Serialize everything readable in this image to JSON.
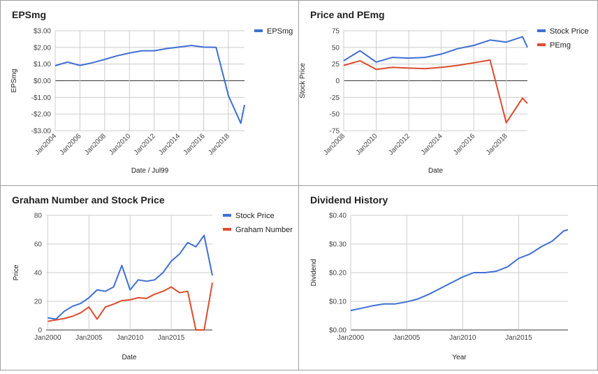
{
  "colors": {
    "blue": "#3f6fd4",
    "red": "#dc4b2d",
    "grid": "#cccccc",
    "zero": "#333333"
  },
  "chart_data": [
    {
      "type": "line",
      "title": "EPSmg",
      "xlabel": "Date / Jul99",
      "ylabel": "EPSmg",
      "xlim": [
        2004,
        2019.3
      ],
      "ylim": [
        -3,
        3
      ],
      "x_ticks": [
        2004,
        2006,
        2008,
        2010,
        2012,
        2014,
        2016,
        2018
      ],
      "x_tick_labels": [
        "Jan2004",
        "Jan2006",
        "Jan2008",
        "Jan2010",
        "Jan2012",
        "Jan2014",
        "Jan2016",
        "Jan2018"
      ],
      "y_ticks": [
        3,
        2,
        1,
        0,
        -1,
        -2,
        -3
      ],
      "y_tick_labels": [
        "$3.00",
        "$2.00",
        "$1.00",
        "$0.00",
        "-$1.00",
        "-$2.00",
        "-$3.00"
      ],
      "legend_position": "right",
      "series": [
        {
          "name": "EPSmg",
          "color": "#3f6fd4",
          "x": [
            2004,
            2005,
            2006,
            2007,
            2008,
            2009,
            2010,
            2011,
            2012,
            2013,
            2014,
            2015,
            2016,
            2017,
            2018,
            2019,
            2019.3
          ],
          "y": [
            0.9,
            1.12,
            0.92,
            1.08,
            1.28,
            1.5,
            1.66,
            1.8,
            1.8,
            1.93,
            2.02,
            2.12,
            2.02,
            2.0,
            -0.9,
            -2.55,
            -1.45
          ]
        }
      ]
    },
    {
      "type": "line",
      "title": "Price and PEmg",
      "xlabel": "Date",
      "ylabel": "Stock Price",
      "xlim": [
        2008,
        2019.3
      ],
      "ylim": [
        -75,
        75
      ],
      "x_ticks": [
        2008,
        2010,
        2012,
        2014,
        2016,
        2018
      ],
      "x_tick_labels": [
        "Jan2008",
        "Jan2010",
        "Jan2012",
        "Jan2014",
        "Jan2016",
        "Jan2018"
      ],
      "y_ticks": [
        75,
        50,
        25,
        0,
        -25,
        -50,
        -75
      ],
      "y_tick_labels": [
        "75",
        "50",
        "25",
        "0",
        "-25",
        "-50",
        "-75"
      ],
      "legend_position": "right",
      "series": [
        {
          "name": "Stock Price",
          "color": "#3f6fd4",
          "x": [
            2008,
            2009,
            2010,
            2011,
            2012,
            2013,
            2014,
            2015,
            2016,
            2017,
            2018,
            2019,
            2019.3
          ],
          "y": [
            30,
            45,
            28,
            35,
            34,
            35,
            40,
            48,
            53,
            61,
            58,
            66,
            50
          ]
        },
        {
          "name": "PEmg",
          "color": "#dc4b2d",
          "x": [
            2008,
            2009,
            2010,
            2011,
            2012,
            2013,
            2014,
            2015,
            2016,
            2017,
            2018,
            2019,
            2019.3
          ],
          "y": [
            23,
            30,
            17,
            20,
            19,
            18,
            20,
            23,
            27,
            31,
            -63,
            -26,
            -34
          ]
        }
      ]
    },
    {
      "type": "line",
      "title": "Graham Number and Stock Price",
      "xlabel": "Date",
      "ylabel": "Price",
      "xlim": [
        1999.8,
        2020
      ],
      "ylim": [
        0,
        80
      ],
      "x_ticks": [
        2000,
        2005,
        2010,
        2015
      ],
      "x_tick_labels": [
        "Jan2000",
        "Jan2005",
        "Jan2010",
        "Jan2015"
      ],
      "y_ticks": [
        80,
        60,
        40,
        20,
        0
      ],
      "y_tick_labels": [
        "80",
        "60",
        "40",
        "20",
        "0"
      ],
      "legend_position": "right",
      "series": [
        {
          "name": "Stock Price",
          "color": "#3f6fd4",
          "x": [
            2000,
            2001,
            2002,
            2003,
            2004,
            2005,
            2006,
            2007,
            2008,
            2009,
            2010,
            2011,
            2012,
            2013,
            2014,
            2015,
            2016,
            2017,
            2018,
            2019,
            2020
          ],
          "y": [
            8.5,
            7.5,
            13,
            16.5,
            18.5,
            22.5,
            28,
            27,
            30,
            45,
            28,
            35,
            34,
            35,
            40,
            48,
            53,
            61,
            58,
            66,
            38
          ]
        },
        {
          "name": "Graham Number",
          "color": "#dc4b2d",
          "x": [
            2000,
            2001,
            2002,
            2003,
            2004,
            2005,
            2006,
            2007,
            2008,
            2009,
            2010,
            2011,
            2012,
            2013,
            2014,
            2015,
            2016,
            2017,
            2018,
            2019,
            2020
          ],
          "y": [
            6,
            7,
            8,
            9.5,
            12,
            16,
            7.5,
            16,
            18,
            20.5,
            21,
            22.5,
            22,
            25,
            27,
            30,
            26,
            27,
            0,
            0,
            33
          ]
        }
      ]
    },
    {
      "type": "line",
      "title": "Dividend History",
      "xlabel": "Year",
      "ylabel": "Dividend",
      "xlim": [
        2000,
        2019.4
      ],
      "ylim": [
        0,
        0.4
      ],
      "x_ticks": [
        2000,
        2005,
        2010,
        2015
      ],
      "x_tick_labels": [
        "Jan2000",
        "Jan2005",
        "Jan2010",
        "Jan2015"
      ],
      "y_ticks": [
        0.4,
        0.3,
        0.2,
        0.1,
        0
      ],
      "y_tick_labels": [
        "$0.40",
        "$0.30",
        "$0.20",
        "$0.10",
        "$0.00"
      ],
      "legend_position": "none",
      "series": [
        {
          "color": "#3f6fd4",
          "x": [
            2000,
            2001,
            2002,
            2003,
            2004,
            2005,
            2006,
            2007,
            2008,
            2009,
            2010,
            2011,
            2012,
            2013,
            2014,
            2015,
            2016,
            2017,
            2018,
            2019,
            2019.4
          ],
          "y": [
            0.068,
            0.076,
            0.085,
            0.091,
            0.091,
            0.098,
            0.108,
            0.125,
            0.145,
            0.165,
            0.185,
            0.2,
            0.2,
            0.205,
            0.22,
            0.25,
            0.265,
            0.29,
            0.31,
            0.345,
            0.35
          ]
        }
      ]
    }
  ]
}
